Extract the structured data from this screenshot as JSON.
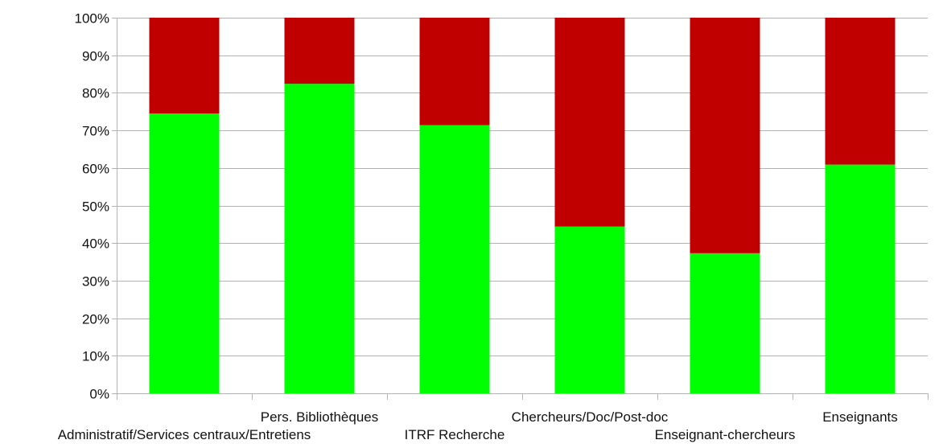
{
  "chart_data": {
    "type": "bar",
    "stacked": true,
    "percent_stacked": true,
    "title": "",
    "xlabel": "",
    "ylabel": "",
    "ylim": [
      0,
      100
    ],
    "y_ticks": [
      "0%",
      "10%",
      "20%",
      "30%",
      "40%",
      "50%",
      "60%",
      "70%",
      "80%",
      "90%",
      "100%"
    ],
    "grid": true,
    "legend": "none",
    "categories": [
      "Administratif/Services centraux/Entretiens",
      "Pers. Bibliothèques",
      "ITRF Recherche",
      "Chercheurs/Doc/Post-doc",
      "Enseignant-chercheurs",
      "Enseignants"
    ],
    "series": [
      {
        "values": [
          74.5,
          82.4,
          71.4,
          44.4,
          37.3,
          60.9
        ],
        "color": "#00ff00"
      },
      {
        "values": [
          25.5,
          17.6,
          28.6,
          55.6,
          62.7,
          39.1
        ],
        "color": "#c00000"
      }
    ]
  }
}
